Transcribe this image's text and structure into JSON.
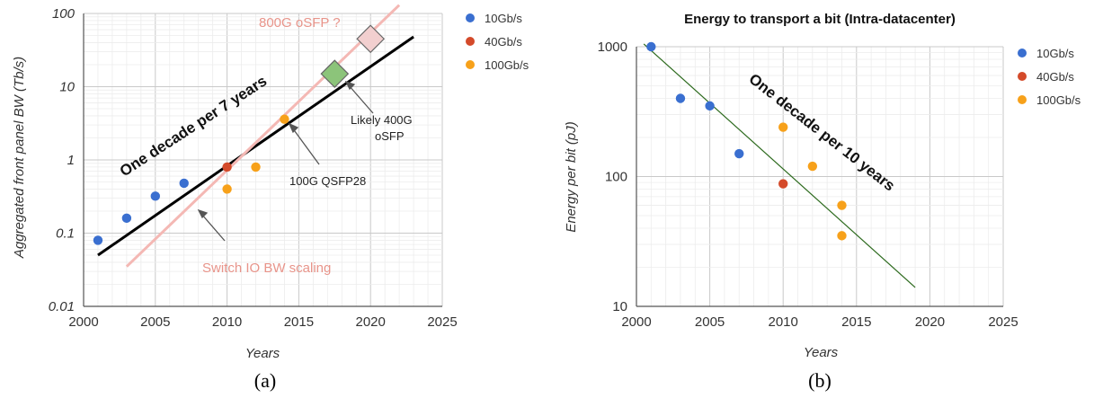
{
  "chart_data": [
    {
      "type": "scatter",
      "title": "",
      "panel_label": "(a)",
      "xlabel": "Years",
      "ylabel": "Aggregated front panel BW (Tb/s)",
      "xlim": [
        2000,
        2025
      ],
      "ylim": [
        0.01,
        100
      ],
      "yscale": "log",
      "x_ticks": [
        "2000",
        "2005",
        "2010",
        "2015",
        "2020",
        "2025"
      ],
      "y_ticks": [
        "0.01",
        "0.1",
        "1",
        "10",
        "100"
      ],
      "grid": true,
      "legend_position": "right",
      "series": [
        {
          "name": "10Gb/s",
          "color": "#3a6fd0",
          "points": [
            [
              2001,
              0.08
            ],
            [
              2003,
              0.16
            ],
            [
              2005,
              0.32
            ],
            [
              2007,
              0.48
            ]
          ]
        },
        {
          "name": "40Gb/s",
          "color": "#d44a2a",
          "points": [
            [
              2010,
              0.8
            ]
          ]
        },
        {
          "name": "100Gb/s",
          "color": "#f7a11a",
          "points": [
            [
              2010,
              0.4
            ],
            [
              2012,
              0.8
            ],
            [
              2014,
              3.6
            ]
          ]
        }
      ],
      "trend_lines": [
        {
          "label": "One decade per 7 years",
          "color": "#000000",
          "from": [
            2001,
            0.05
          ],
          "to": [
            2023,
            48
          ]
        },
        {
          "label": "Switch IO BW scaling",
          "color": "#f4b8b4",
          "from": [
            2003,
            0.035
          ],
          "to": [
            2022,
            130
          ]
        }
      ],
      "markers": [
        {
          "label": "800G oSFP ?",
          "shape": "diamond",
          "color": "#f2cfcf",
          "x": 2020,
          "y": 45
        },
        {
          "label": "Likely 400G oSFP",
          "shape": "diamond",
          "color": "#8cc47a",
          "x": 2017.5,
          "y": 15
        }
      ],
      "annotations": [
        {
          "text": "100G QSFP28",
          "target": [
            2014.3,
            3.1
          ]
        }
      ]
    },
    {
      "type": "scatter",
      "title": "Energy to transport a bit (Intra-datacenter)",
      "panel_label": "(b)",
      "xlabel": "Years",
      "ylabel": "Energy per bit (pJ)",
      "xlim": [
        2000,
        2025
      ],
      "ylim": [
        10,
        1000
      ],
      "yscale": "log",
      "x_ticks": [
        "2000",
        "2005",
        "2010",
        "2015",
        "2020",
        "2025"
      ],
      "y_ticks": [
        "10",
        "100",
        "1000"
      ],
      "grid": true,
      "legend_position": "right",
      "series": [
        {
          "name": "10Gb/s",
          "color": "#3a6fd0",
          "points": [
            [
              2001,
              1000
            ],
            [
              2003,
              400
            ],
            [
              2005,
              350
            ],
            [
              2007,
              150
            ]
          ]
        },
        {
          "name": "40Gb/s",
          "color": "#d44a2a",
          "points": [
            [
              2010,
              88
            ]
          ]
        },
        {
          "name": "100Gb/s",
          "color": "#f7a11a",
          "points": [
            [
              2010,
              240
            ],
            [
              2012,
              120
            ],
            [
              2014,
              60
            ],
            [
              2014,
              35
            ]
          ]
        }
      ],
      "trend_lines": [
        {
          "label": "One decade per 10 years",
          "color": "#2e6b1f",
          "from": [
            2000.5,
            1050
          ],
          "to": [
            2019,
            14
          ]
        }
      ]
    }
  ]
}
